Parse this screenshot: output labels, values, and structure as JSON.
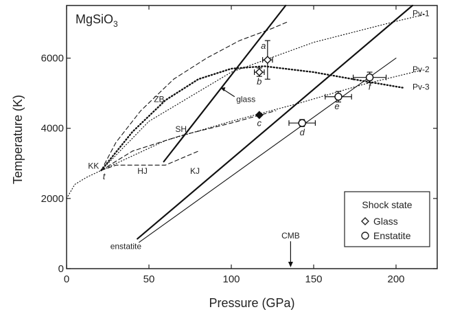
{
  "chart_data": {
    "type": "scatter",
    "title": "MgSiO3",
    "xlabel": "Pressure (GPa)",
    "ylabel": "Temperature (K)",
    "xlim": [
      0,
      225
    ],
    "ylim": [
      0,
      7500
    ],
    "xticks": [
      0,
      50,
      100,
      150,
      200
    ],
    "yticks": [
      0,
      2000,
      4000,
      6000
    ],
    "grid": false,
    "legend": {
      "title": "Shock state",
      "position": "bottom-right",
      "entries": [
        {
          "label": "Glass",
          "marker": "diamond"
        },
        {
          "label": "Enstatite",
          "marker": "circle"
        }
      ]
    },
    "series": [
      {
        "style": "thick-solid",
        "x": [
          59,
          133
        ],
        "y": [
          3050,
          7500
        ]
      },
      {
        "style": "thick-solid",
        "x": [
          43,
          210
        ],
        "y": [
          850,
          7500
        ]
      },
      {
        "style": "thin-solid",
        "x": [
          44,
          200
        ],
        "y": [
          750,
          6000
        ]
      },
      {
        "style": "dashed",
        "x": [
          21,
          30,
          45,
          65,
          85,
          105,
          125,
          135
        ],
        "y": [
          2800,
          3600,
          4500,
          5400,
          6000,
          6500,
          6850,
          7050
        ]
      },
      {
        "style": "dashed",
        "x": [
          21,
          40,
          70,
          100,
          127
        ],
        "y": [
          2800,
          3350,
          3800,
          4150,
          4500
        ]
      },
      {
        "style": "dashed",
        "x": [
          21,
          30,
          45,
          60,
          70,
          80
        ],
        "y": [
          2800,
          2950,
          2950,
          2950,
          3150,
          3350
        ]
      },
      {
        "style": "dotted-bold",
        "x": [
          21,
          40,
          60,
          80,
          100,
          120,
          150,
          180,
          205
        ],
        "y": [
          2800,
          3900,
          4800,
          5400,
          5700,
          5770,
          5600,
          5350,
          5150
        ]
      },
      {
        "style": "dotted",
        "x": [
          21,
          50,
          100,
          150,
          200,
          218
        ],
        "y": [
          2800,
          4200,
          5600,
          6450,
          7050,
          7250
        ]
      },
      {
        "style": "dotted",
        "x": [
          21,
          60,
          100,
          140,
          180,
          215
        ],
        "y": [
          2800,
          3650,
          4200,
          4700,
          5250,
          5650
        ]
      },
      {
        "style": "dotted",
        "x": [
          0,
          5,
          12,
          21
        ],
        "y": [
          2000,
          2400,
          2600,
          2800
        ]
      }
    ],
    "points": [
      {
        "label": "a",
        "x": 122,
        "y": 5950,
        "marker": "diamond-open",
        "xerr": 3,
        "yerr": 550
      },
      {
        "label": "b",
        "x": 117,
        "y": 5600,
        "marker": "diamond-open",
        "xerr": 3,
        "yerr": 120
      },
      {
        "label": "c",
        "x": 117,
        "y": 4380,
        "marker": "diamond-filled"
      },
      {
        "label": "d",
        "x": 143,
        "y": 4150,
        "marker": "circle-open",
        "xerr": 8,
        "yerr": 100
      },
      {
        "label": "e",
        "x": 165,
        "y": 4900,
        "marker": "circle-open",
        "xerr": 8,
        "yerr": 150
      },
      {
        "label": "f",
        "x": 184,
        "y": 5450,
        "marker": "circle-open",
        "xerr": 10,
        "yerr": 150
      }
    ],
    "annotations": [
      {
        "text": "ZB",
        "x": 53,
        "y": 4750,
        "style": "normal"
      },
      {
        "text": "SH",
        "x": 66,
        "y": 3900,
        "style": "normal"
      },
      {
        "text": "KK",
        "x": 13,
        "y": 2850,
        "style": "normal"
      },
      {
        "text": "t",
        "x": 22,
        "y": 2550,
        "style": "italic"
      },
      {
        "text": "HJ",
        "x": 43,
        "y": 2700,
        "style": "normal"
      },
      {
        "text": "KJ",
        "x": 75,
        "y": 2700,
        "style": "normal"
      },
      {
        "text": "glass",
        "x": 103,
        "y": 4750,
        "style": "normal"
      },
      {
        "text": "enstatite",
        "x": 36,
        "y": 560,
        "style": "normal"
      },
      {
        "text": "CMB",
        "x": 136,
        "y": 860,
        "style": "normal"
      },
      {
        "text": "Pv-1",
        "x": 210,
        "y": 7200,
        "style": "normal"
      },
      {
        "text": "Pv-2",
        "x": 210,
        "y": 5600,
        "style": "normal"
      },
      {
        "text": "Pv-3",
        "x": 210,
        "y": 5100,
        "style": "normal"
      }
    ]
  }
}
